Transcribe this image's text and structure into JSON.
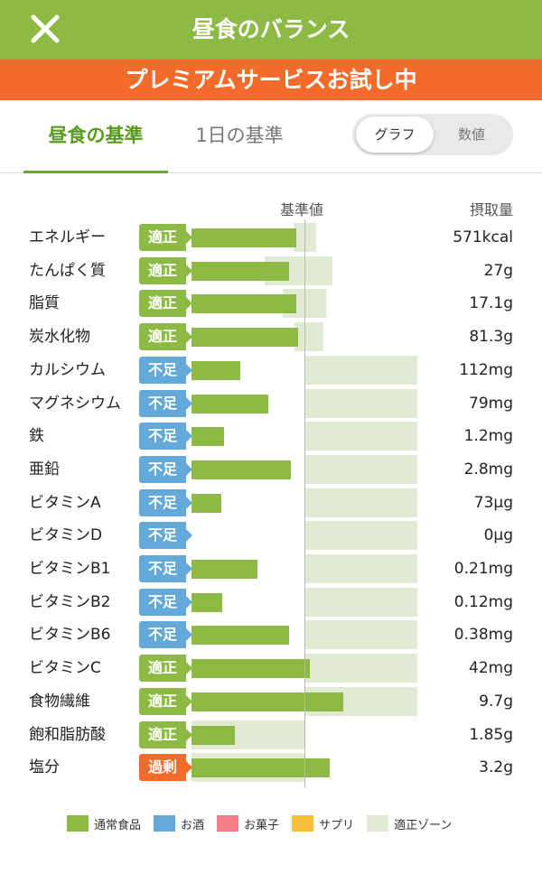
{
  "header": {
    "title": "昼食のバランス",
    "background": "#8cba45"
  },
  "banner": {
    "text": "プレミアムサービスお試し中",
    "background": "#f26b2b"
  },
  "tabs": [
    {
      "label": "昼食の基準",
      "active": true
    },
    {
      "label": "1日の基準",
      "active": false
    }
  ],
  "view_toggle": {
    "graph_label": "グラフ",
    "number_label": "数値",
    "selected": "グラフ"
  },
  "columns": {
    "standard": "基準値",
    "intake": "摂取量"
  },
  "status_colors": {
    "適正": "#8cba45",
    "不足": "#63a9d9",
    "過剰": "#f26b2b"
  },
  "chart_data": {
    "type": "bar",
    "reference_label": "基準値",
    "categories": [
      "エネルギー",
      "たんぱく質",
      "脂質",
      "炭水化物",
      "カルシウム",
      "マグネシウム",
      "鉄",
      "亜鉛",
      "ビタミンA",
      "ビタミンD",
      "ビタミンB1",
      "ビタミンB2",
      "ビタミンB6",
      "ビタミンC",
      "食物繊維",
      "飽和脂肪酸",
      "塩分"
    ],
    "series": [
      {
        "name": "通常食品",
        "values": [
          0.93,
          0.86,
          0.93,
          0.94,
          0.43,
          0.68,
          0.29,
          0.88,
          0.26,
          0,
          0.58,
          0.27,
          0.86,
          1.05,
          1.34,
          0.38,
          1.22
        ]
      }
    ],
    "value_unit": "fraction of 基準値",
    "zones": [
      [
        0.9,
        1.1
      ],
      [
        0.65,
        1.25
      ],
      [
        0.81,
        1.19
      ],
      [
        0.91,
        1.17
      ],
      [
        1.0,
        2.0
      ],
      [
        1.0,
        2.0
      ],
      [
        1.0,
        2.0
      ],
      [
        1.0,
        2.0
      ],
      [
        1.0,
        2.0
      ],
      [
        1.0,
        2.0
      ],
      [
        1.0,
        2.0
      ],
      [
        1.0,
        2.0
      ],
      [
        1.0,
        2.0
      ],
      [
        1.0,
        2.0
      ],
      [
        1.0,
        2.0
      ],
      [
        0,
        1.0
      ],
      [
        0,
        1.0
      ]
    ],
    "statuses": [
      "適正",
      "適正",
      "適正",
      "適正",
      "不足",
      "不足",
      "不足",
      "不足",
      "不足",
      "不足",
      "不足",
      "不足",
      "不足",
      "適正",
      "適正",
      "適正",
      "過剰"
    ],
    "intake_labels": [
      "571kcal",
      "27g",
      "17.1g",
      "81.3g",
      "112mg",
      "79mg",
      "1.2mg",
      "2.8mg",
      "73µg",
      "0µg",
      "0.21mg",
      "0.12mg",
      "0.38mg",
      "42mg",
      "9.7g",
      "1.85g",
      "3.2g"
    ]
  },
  "legend": [
    {
      "label": "通常食品",
      "color": "#8cba45"
    },
    {
      "label": "お酒",
      "color": "#63a9d9"
    },
    {
      "label": "お菓子",
      "color": "#f47c87"
    },
    {
      "label": "サプリ",
      "color": "#f8bf3c"
    },
    {
      "label": "適正ゾーン",
      "color": "#e1ebd3"
    }
  ]
}
